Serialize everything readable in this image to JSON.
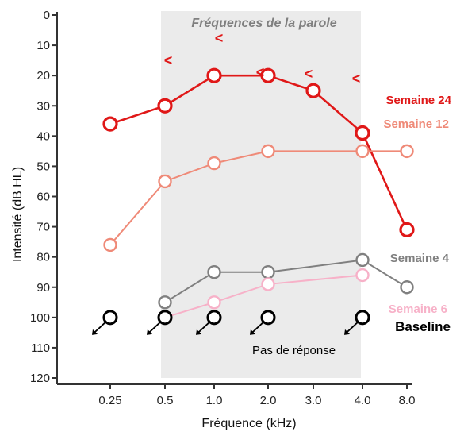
{
  "chart_data": {
    "type": "line",
    "title": "",
    "xlabel": "Fréquence (kHz)",
    "ylabel": "Intensité (dB HL)",
    "categories": [
      "0.25",
      "0.5",
      "1.0",
      "2.0",
      "3.0",
      "4.0",
      "8.0"
    ],
    "ylim": [
      0,
      120
    ],
    "y_inverted": true,
    "yticks": [
      0,
      10,
      20,
      30,
      40,
      50,
      60,
      70,
      80,
      90,
      100,
      110,
      120
    ],
    "band": {
      "label": "Fréquences de la parole",
      "from": "0.5",
      "to": "4.0"
    },
    "series": [
      {
        "name": "Semaine 24",
        "color": "#e01818",
        "values": [
          36,
          30,
          20,
          20,
          25,
          39,
          71
        ]
      },
      {
        "name": "Semaine 12",
        "color": "#ef8a78",
        "values": [
          76,
          55,
          49,
          45,
          null,
          45,
          45
        ]
      },
      {
        "name": "Semaine 4",
        "color": "#808080",
        "values": [
          null,
          95,
          85,
          85,
          null,
          81,
          90
        ]
      },
      {
        "name": "Semaine 6",
        "color": "#f7b1c8",
        "values": [
          null,
          100,
          95,
          89,
          null,
          86,
          null
        ]
      },
      {
        "name": "Baseline",
        "color": "#000000",
        "values": [
          100,
          100,
          100,
          100,
          null,
          100,
          null
        ],
        "no_response": true
      }
    ],
    "bone_conduction_marks": [
      {
        "x": "0.5",
        "y": 20,
        "text": "<"
      },
      {
        "x": "1.0",
        "y": 15,
        "text": "<"
      },
      {
        "x": "2.0",
        "y": 20,
        "text": "<"
      },
      {
        "x": "3.0",
        "y": 20,
        "text": "<"
      },
      {
        "x": "4.0",
        "y": 20,
        "text": "<"
      }
    ],
    "annotations": [
      {
        "text": "Pas de réponse"
      }
    ]
  }
}
